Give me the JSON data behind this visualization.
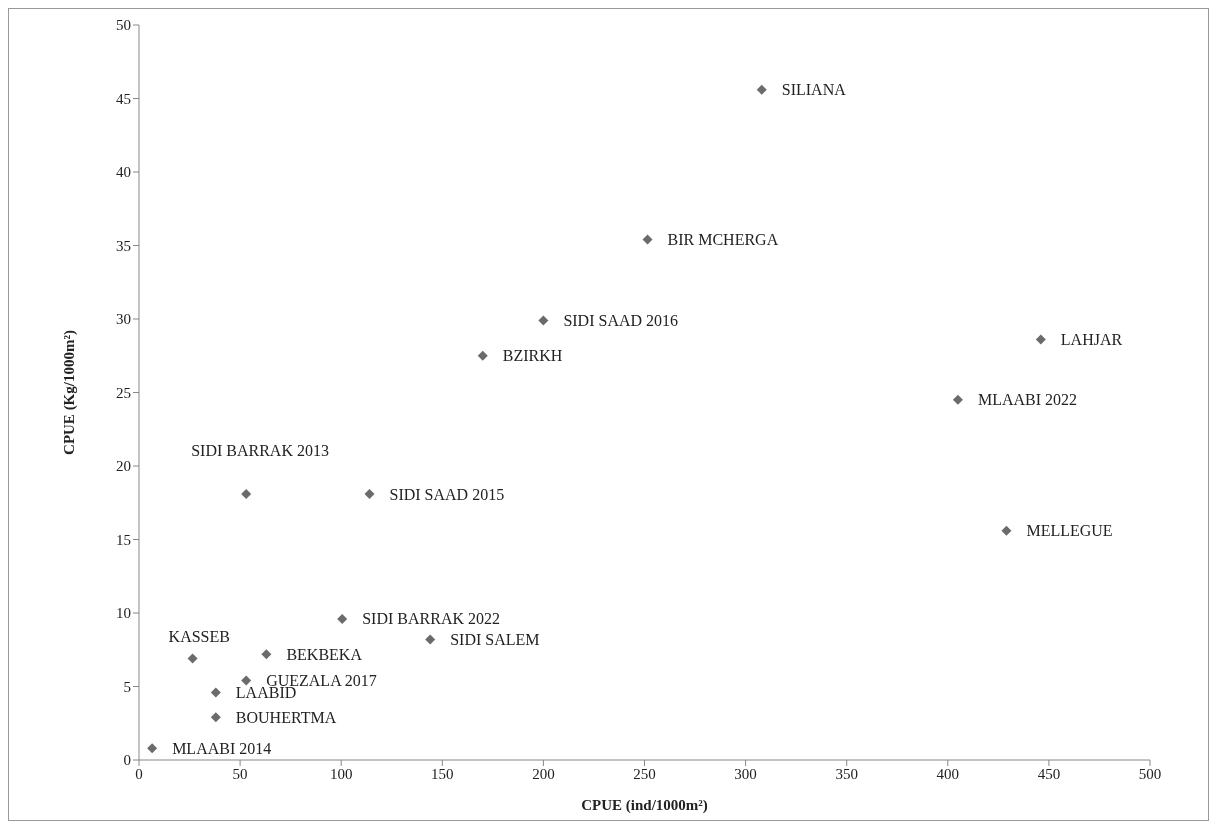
{
  "chart_data": {
    "type": "scatter",
    "xlabel": "CPUE  (ind/1000m²)",
    "ylabel": "CPUE  (Kg/1000m²)",
    "x": [
      308,
      251.5,
      200,
      170,
      446,
      405,
      429,
      53,
      114,
      100.5,
      144,
      26.5,
      63,
      53,
      38,
      38,
      6.5
    ],
    "series": [
      {
        "color": "#6b6b6b",
        "values": [
          45.6,
          35.4,
          29.9,
          27.5,
          28.6,
          24.5,
          15.6,
          18.1,
          18.1,
          9.6,
          8.2,
          6.9,
          7.2,
          5.4,
          4.6,
          2.9,
          0.8
        ]
      }
    ],
    "marker": "diamond",
    "grid": false,
    "legend": false,
    "xlim": [
      0,
      500
    ],
    "xticks": [
      0,
      50,
      100,
      150,
      200,
      250,
      300,
      350,
      400,
      450,
      500
    ],
    "ylim": [
      0,
      50
    ],
    "yticks": [
      0,
      5,
      10,
      15,
      20,
      25,
      30,
      35,
      40,
      45,
      50
    ],
    "annotations": [
      {
        "text": "SILIANA",
        "x": 308,
        "y": 45.6
      },
      {
        "text": "BIR MCHERGA",
        "x": 251.5,
        "y": 35.4
      },
      {
        "text": "SIDI SAAD 2016",
        "x": 200,
        "y": 29.9
      },
      {
        "text": "BZIRKH",
        "x": 170,
        "y": 27.5
      },
      {
        "text": "LAHJAR",
        "x": 446,
        "y": 28.6
      },
      {
        "text": "MLAABI 2022",
        "x": 405,
        "y": 24.5
      },
      {
        "text": "MELLEGUE",
        "x": 429,
        "y": 15.6
      },
      {
        "text": "SIDI BARRAK 2013",
        "x": 53,
        "y": 18.1
      },
      {
        "text": "SIDI SAAD 2015",
        "x": 114,
        "y": 18.1
      },
      {
        "text": "SIDI BARRAK 2022",
        "x": 100.5,
        "y": 9.6
      },
      {
        "text": "SIDI SALEM",
        "x": 144,
        "y": 8.2
      },
      {
        "text": "KASSEB",
        "x": 26.5,
        "y": 6.9
      },
      {
        "text": "BEKBEKA",
        "x": 63,
        "y": 7.2
      },
      {
        "text": "GUEZALA  2017",
        "x": 53,
        "y": 5.4
      },
      {
        "text": "LAABID",
        "x": 38,
        "y": 4.6
      },
      {
        "text": "BOUHERTMA",
        "x": 38,
        "y": 2.9
      },
      {
        "text": "MLAABI 2014",
        "x": 6.5,
        "y": 0.8
      }
    ]
  }
}
